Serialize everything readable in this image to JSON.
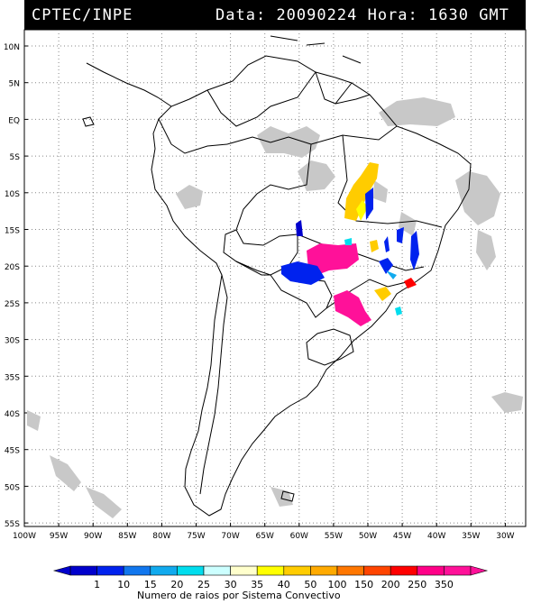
{
  "header": {
    "source": "CPTEC/INPE",
    "date_label": "Data:",
    "date": "20090224",
    "hour_label": "Hora:",
    "hour": "1630 GMT"
  },
  "lat_labels": [
    "10N",
    "5N",
    "EQ",
    "5S",
    "10S",
    "15S",
    "20S",
    "25S",
    "30S",
    "35S",
    "40S",
    "45S",
    "50S",
    "55S"
  ],
  "lon_labels": [
    "100W",
    "95W",
    "90W",
    "85W",
    "80W",
    "75W",
    "70W",
    "65W",
    "60W",
    "55W",
    "50W",
    "45W",
    "40W",
    "35W",
    "30W"
  ],
  "legend": {
    "title": "Numero de raios por Sistema Convectivo",
    "values": [
      "1",
      "10",
      "15",
      "20",
      "25",
      "30",
      "35",
      "40",
      "50",
      "100",
      "150",
      "200",
      "250",
      "350"
    ],
    "colors": [
      "#0000cc",
      "#0022ee",
      "#1177ee",
      "#11aaee",
      "#00ddee",
      "#ccffff",
      "#ffffcc",
      "#ffff00",
      "#ffcc00",
      "#ffaa00",
      "#ff7700",
      "#ff4400",
      "#ff0000",
      "#ff0088",
      "#ff1199"
    ]
  },
  "colors": {
    "cloud": "#c8c8c8",
    "grid": "#888888",
    "coast": "#000000"
  }
}
